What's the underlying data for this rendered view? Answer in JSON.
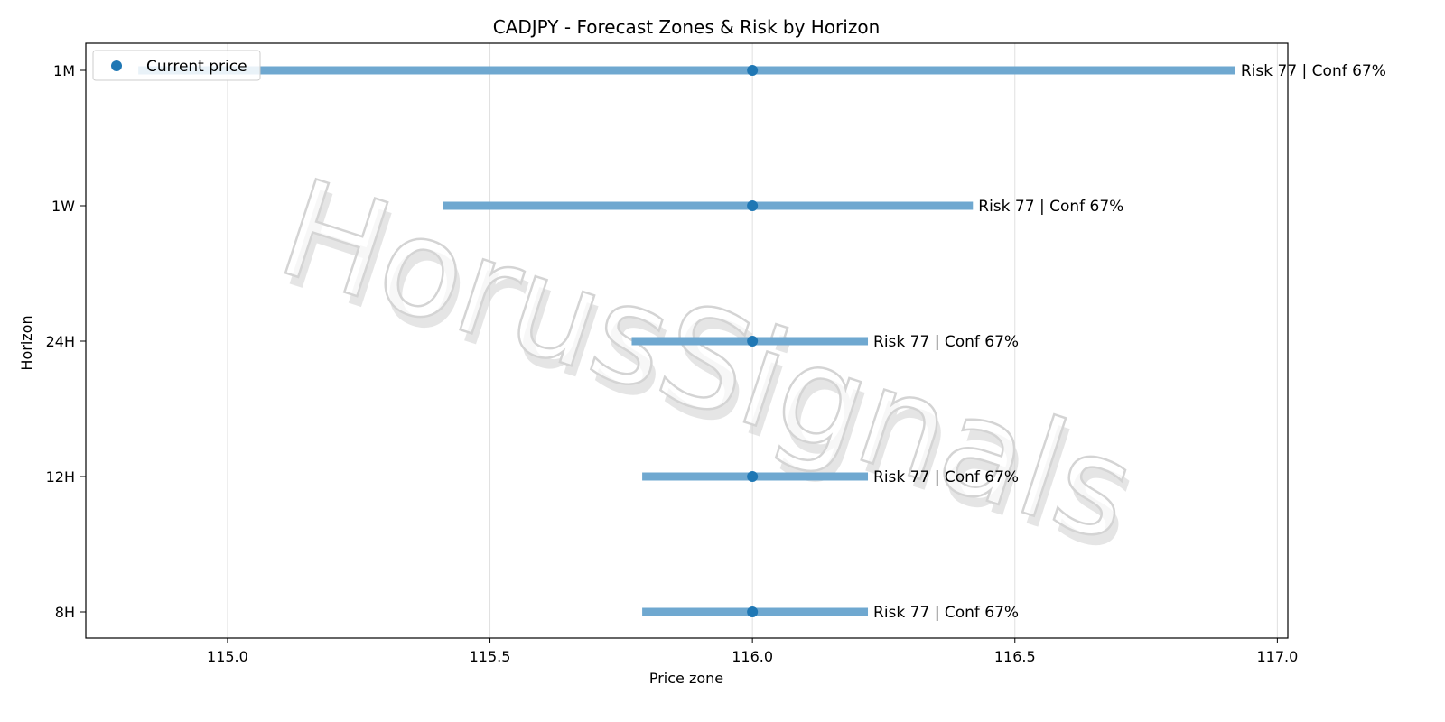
{
  "chart_data": {
    "type": "range",
    "title": "CADJPY - Forecast Zones & Risk by Horizon",
    "xlabel": "Price zone",
    "ylabel": "Horizon",
    "xlim": [
      114.73,
      117.02
    ],
    "xticks": [
      115.0,
      115.5,
      116.0,
      116.5,
      117.0
    ],
    "xtick_labels": [
      "115.0",
      "115.5",
      "116.0",
      "116.5",
      "117.0"
    ],
    "grid": "x",
    "legend": {
      "position": "top-left",
      "entries": [
        "Current price"
      ]
    },
    "watermark": "HorusSignals",
    "colors": {
      "range": "#6fa8d0",
      "point": "#1f77b4",
      "grid": "#e0e0e0",
      "watermark": "#d4d4d4"
    },
    "horizons": [
      {
        "label": "1M",
        "low": 114.83,
        "high": 116.92,
        "current": 116.0,
        "annotation": "Risk 77 | Conf 67%"
      },
      {
        "label": "1W",
        "low": 115.41,
        "high": 116.42,
        "current": 116.0,
        "annotation": "Risk 77 | Conf 67%"
      },
      {
        "label": "24H",
        "low": 115.77,
        "high": 116.22,
        "current": 116.0,
        "annotation": "Risk 77 | Conf 67%"
      },
      {
        "label": "12H",
        "low": 115.79,
        "high": 116.22,
        "current": 116.0,
        "annotation": "Risk 77 | Conf 67%"
      },
      {
        "label": "8H",
        "low": 115.79,
        "high": 116.22,
        "current": 116.0,
        "annotation": "Risk 77 | Conf 67%"
      }
    ]
  }
}
